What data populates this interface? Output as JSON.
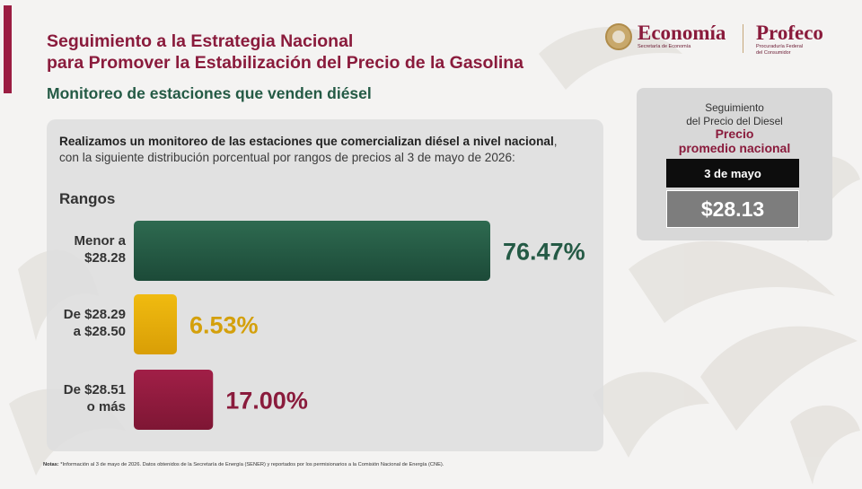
{
  "header": {
    "title_line1": "Seguimiento a la Estrategia Nacional",
    "title_line2": "para Promover la Estabilización del Precio de la Gasolina",
    "subtitle": "Monitoreo de estaciones que venden diésel"
  },
  "logos": {
    "economia": "Economía",
    "economia_sub": "Secretaría de Economía",
    "profeco": "Profeco",
    "profeco_sub_line1": "Procuraduría Federal",
    "profeco_sub_line2": "del Consumidor"
  },
  "intro": {
    "bold_text": "Realizamos un monitoreo de las estaciones que comercializan diésel a nivel nacional",
    "rest_line1": ",",
    "line2": "con la siguiente distribución porcentual por rangos de precios al 3 de mayo de 2026:"
  },
  "rangos_label": "Rangos",
  "side_card": {
    "title_line1": "Seguimiento",
    "title_line2": "del Precio del Diesel",
    "highlight_line1": "Precio",
    "highlight_line2": "promedio nacional",
    "date": "3 de mayo",
    "price": "$28.13"
  },
  "notes": {
    "label": "Notas:",
    "text": "*Información al 3 de mayo de 2026. Datos obtenidos de la Secretaría de Energía (SENER) y reportados por los permisionarios a la Comisión Nacional de Energía (CNE)."
  },
  "colors": {
    "brand_maroon": "#8a1b3c",
    "green": "#245a45",
    "gold": "#d4a00b",
    "maroon_bar": "#9b1d42"
  },
  "chart_data": {
    "type": "bar",
    "orientation": "horizontal",
    "categories": [
      [
        "Menor a",
        "$28.28"
      ],
      [
        "De $28.29",
        "a $28.50"
      ],
      [
        "De $28.51",
        "o más"
      ]
    ],
    "values": [
      76.47,
      6.53,
      17.0
    ],
    "value_labels": [
      "76.47%",
      "6.53%",
      "17.00%"
    ],
    "bar_colors": [
      "#245a45",
      "#e8b10c",
      "#8d1a3c"
    ],
    "label_colors": [
      "#245a45",
      "#d4a00b",
      "#8a1b3c"
    ],
    "title": "",
    "xlabel": "",
    "ylabel": "Rangos",
    "xlim": [
      0,
      76.47
    ],
    "grid": false,
    "legend": false
  }
}
